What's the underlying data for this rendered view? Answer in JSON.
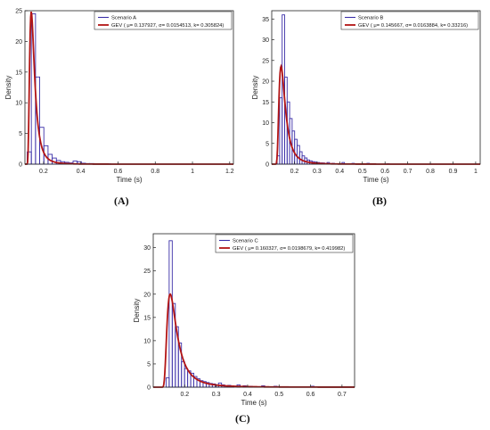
{
  "colors": {
    "histogram": "#3b2fa8",
    "fit": "#b31515",
    "axis": "#222222"
  },
  "chart_data": [
    {
      "type": "bar",
      "panel_label": "(A)",
      "xlabel": "Time (s)",
      "ylabel": "Density",
      "xlim": [
        0.1,
        1.22
      ],
      "ylim": [
        0,
        25
      ],
      "xticks": [
        0.2,
        0.4,
        0.6,
        0.8,
        1,
        1.2
      ],
      "xtick_labels": [
        "0.2",
        "0.4",
        "0.6",
        "0.8",
        "1",
        "1.2"
      ],
      "yticks": [
        0,
        5,
        10,
        15,
        20,
        25
      ],
      "ytick_labels": [
        "0",
        "5",
        "10",
        "15",
        "20",
        "25"
      ],
      "legend_position": "top-right",
      "legend": [
        "Scenario A",
        "GEV ( μ= 0.137927,  σ= 0.0154513,  k= 0.305824)"
      ],
      "bin_width": 0.0224,
      "bins": [
        {
          "x0": 0.112,
          "value": 2.0
        },
        {
          "x0": 0.1344,
          "value": 24.5
        },
        {
          "x0": 0.1568,
          "value": 14.2
        },
        {
          "x0": 0.1792,
          "value": 6.0
        },
        {
          "x0": 0.2016,
          "value": 3.0
        },
        {
          "x0": 0.224,
          "value": 1.6
        },
        {
          "x0": 0.2464,
          "value": 1.0
        },
        {
          "x0": 0.2688,
          "value": 0.6
        },
        {
          "x0": 0.2912,
          "value": 0.4
        },
        {
          "x0": 0.3136,
          "value": 0.3
        },
        {
          "x0": 0.336,
          "value": 0.2
        },
        {
          "x0": 0.3584,
          "value": 0.5
        },
        {
          "x0": 0.3808,
          "value": 0.4
        },
        {
          "x0": 0.4032,
          "value": 0.15
        },
        {
          "x0": 0.4256,
          "value": 0.1
        },
        {
          "x0": 0.448,
          "value": 0.1
        },
        {
          "x0": 0.4928,
          "value": 0.05
        },
        {
          "x0": 0.5376,
          "value": 0.05
        }
      ],
      "fit": {
        "mu": 0.137927,
        "sigma": 0.0154513,
        "k": 0.305824
      }
    },
    {
      "type": "bar",
      "panel_label": "(B)",
      "xlabel": "Time (s)",
      "ylabel": "Density",
      "xlim": [
        0.1,
        1.02
      ],
      "ylim": [
        0,
        37
      ],
      "xticks": [
        0.2,
        0.3,
        0.4,
        0.5,
        0.6,
        0.7,
        0.8,
        0.9,
        1
      ],
      "xtick_labels": [
        "0.2",
        "0.3",
        "0.4",
        "0.5",
        "0.6",
        "0.7",
        "0.8",
        "0.9",
        "1"
      ],
      "yticks": [
        0,
        5,
        10,
        15,
        20,
        25,
        30,
        35
      ],
      "ytick_labels": [
        "0",
        "5",
        "10",
        "15",
        "20",
        "25",
        "30",
        "35"
      ],
      "legend_position": "top-right",
      "legend": [
        "Scenario B",
        "GEV ( μ= 0.145667,  σ= 0.0163884,  k= 0.33216)"
      ],
      "bin_width": 0.011,
      "bins": [
        {
          "x0": 0.124,
          "value": 2.0
        },
        {
          "x0": 0.135,
          "value": 16.0
        },
        {
          "x0": 0.146,
          "value": 36.0
        },
        {
          "x0": 0.157,
          "value": 21.0
        },
        {
          "x0": 0.168,
          "value": 15.0
        },
        {
          "x0": 0.179,
          "value": 11.0
        },
        {
          "x0": 0.19,
          "value": 8.0
        },
        {
          "x0": 0.201,
          "value": 6.0
        },
        {
          "x0": 0.212,
          "value": 4.5
        },
        {
          "x0": 0.223,
          "value": 3.0
        },
        {
          "x0": 0.234,
          "value": 2.0
        },
        {
          "x0": 0.245,
          "value": 1.5
        },
        {
          "x0": 0.256,
          "value": 1.0
        },
        {
          "x0": 0.267,
          "value": 0.8
        },
        {
          "x0": 0.278,
          "value": 0.6
        },
        {
          "x0": 0.289,
          "value": 0.5
        },
        {
          "x0": 0.3,
          "value": 0.4
        },
        {
          "x0": 0.311,
          "value": 0.3
        },
        {
          "x0": 0.322,
          "value": 0.3
        },
        {
          "x0": 0.344,
          "value": 0.4
        },
        {
          "x0": 0.366,
          "value": 0.2
        },
        {
          "x0": 0.41,
          "value": 0.4
        },
        {
          "x0": 0.454,
          "value": 0.2
        },
        {
          "x0": 0.52,
          "value": 0.2
        },
        {
          "x0": 0.608,
          "value": 0.1
        }
      ],
      "fit": {
        "mu": 0.145667,
        "sigma": 0.0163884,
        "k": 0.33216
      }
    },
    {
      "type": "bar",
      "panel_label": "(C)",
      "xlabel": "Time (s)",
      "ylabel": "Density",
      "xlim": [
        0.1,
        0.74
      ],
      "ylim": [
        0,
        33
      ],
      "xticks": [
        0.2,
        0.3,
        0.4,
        0.5,
        0.6,
        0.7
      ],
      "xtick_labels": [
        "0.2",
        "0.3",
        "0.4",
        "0.5",
        "0.6",
        "0.7"
      ],
      "yticks": [
        0,
        5,
        10,
        15,
        20,
        25,
        30
      ],
      "ytick_labels": [
        "0",
        "5",
        "10",
        "15",
        "20",
        "25",
        "30"
      ],
      "legend_position": "top-right",
      "legend": [
        "Scenario C",
        "GEV ( μ= 0.160327,  σ= 0.0198679,  k= 0.419982)"
      ],
      "bin_width": 0.0098,
      "bins": [
        {
          "x0": 0.1408,
          "value": 2.0
        },
        {
          "x0": 0.1506,
          "value": 31.5
        },
        {
          "x0": 0.1604,
          "value": 18.0
        },
        {
          "x0": 0.1702,
          "value": 13.0
        },
        {
          "x0": 0.18,
          "value": 9.5
        },
        {
          "x0": 0.1898,
          "value": 5.5
        },
        {
          "x0": 0.1996,
          "value": 4.0
        },
        {
          "x0": 0.2094,
          "value": 3.5
        },
        {
          "x0": 0.2192,
          "value": 3.0
        },
        {
          "x0": 0.229,
          "value": 2.3
        },
        {
          "x0": 0.2388,
          "value": 1.8
        },
        {
          "x0": 0.2486,
          "value": 1.4
        },
        {
          "x0": 0.2584,
          "value": 1.2
        },
        {
          "x0": 0.2682,
          "value": 1.0
        },
        {
          "x0": 0.278,
          "value": 0.8
        },
        {
          "x0": 0.2878,
          "value": 0.7
        },
        {
          "x0": 0.2976,
          "value": 0.5
        },
        {
          "x0": 0.3074,
          "value": 0.9
        },
        {
          "x0": 0.3172,
          "value": 0.5
        },
        {
          "x0": 0.327,
          "value": 0.3
        },
        {
          "x0": 0.3368,
          "value": 0.4
        },
        {
          "x0": 0.3466,
          "value": 0.3
        },
        {
          "x0": 0.3662,
          "value": 0.5
        },
        {
          "x0": 0.3858,
          "value": 0.3
        },
        {
          "x0": 0.4054,
          "value": 0.2
        },
        {
          "x0": 0.4446,
          "value": 0.3
        },
        {
          "x0": 0.4838,
          "value": 0.2
        },
        {
          "x0": 0.5426,
          "value": 0.1
        },
        {
          "x0": 0.6014,
          "value": 0.2
        },
        {
          "x0": 0.6602,
          "value": 0.1
        }
      ],
      "fit": {
        "mu": 0.160327,
        "sigma": 0.0198679,
        "k": 0.419982
      }
    }
  ]
}
